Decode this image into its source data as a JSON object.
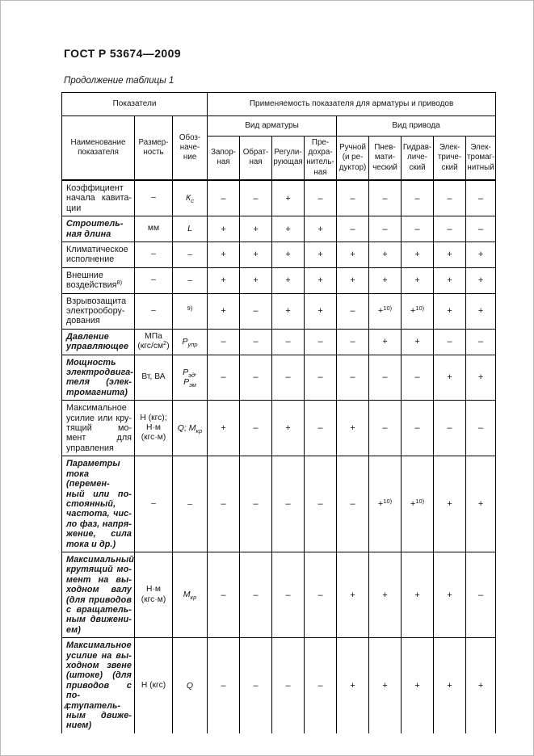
{
  "page": {
    "doc_number": "ГОСТ Р 53674—2009",
    "table_caption": "Продолжение таблицы 1",
    "page_number": "4"
  },
  "table": {
    "header": {
      "indicators": "Показатели",
      "applicability": "Применяемость показателя для арматуры и приводов",
      "name": "Наименование\nпоказателя",
      "dimension": "Размер-\nность",
      "designation": "Обоз-\nначе-\nние",
      "valve_group": "Вид арматуры",
      "drive_group": "Вид привода",
      "valve_cols": [
        "Запор-\nная",
        "Обрат-\nная",
        "Регули-\nрующая",
        "Пре-\nдохра-\nнитель-\nная"
      ],
      "drive_cols": [
        "Ручной\n(и ре-\nдуктор)",
        "Пнев-\nмати-\nческий",
        "Гидрав-\nличе-\nский",
        "Элек-\nтриче-\nский",
        "Элек-\nтромаг-\nнитный"
      ]
    },
    "rows": [
      {
        "name_lines": [
          "Коэффициент",
          "начала кавита-",
          "ции"
        ],
        "bold": false,
        "dim": "–",
        "sym": "К~с~",
        "values": [
          "–",
          "–",
          "+",
          "–",
          "–",
          "–",
          "–",
          "–",
          "–"
        ]
      },
      {
        "name_lines": [
          "Строитель-",
          "ная длина"
        ],
        "bold": true,
        "dim": "мм",
        "sym": "L",
        "values": [
          "+",
          "+",
          "+",
          "+",
          "–",
          "–",
          "–",
          "–",
          "–"
        ]
      },
      {
        "name_lines": [
          "Климатическое",
          "исполнение"
        ],
        "bold": false,
        "dim": "–",
        "sym": "–",
        "values": [
          "+",
          "+",
          "+",
          "+",
          "+",
          "+",
          "+",
          "+",
          "+"
        ]
      },
      {
        "name_lines": [
          "Внешние",
          "воздействия^8)^"
        ],
        "bold": false,
        "dim": "–",
        "sym": "–",
        "values": [
          "+",
          "+",
          "+",
          "+",
          "+",
          "+",
          "+",
          "+",
          "+"
        ]
      },
      {
        "name_lines": [
          "Взрывозащита",
          "электрообору-",
          "дования"
        ],
        "bold": false,
        "dim": "–",
        "sym": "^9)^",
        "values": [
          "+",
          "–",
          "+",
          "+",
          "–",
          "+^10)^",
          "+^10)^",
          "+",
          "+"
        ]
      },
      {
        "name_lines": [
          "Давление",
          "управляющее"
        ],
        "bold": true,
        "dim": "МПа\n(кгс/см^2^)",
        "sym": "Р~упр~",
        "values": [
          "–",
          "–",
          "–",
          "–",
          "–",
          "+",
          "+",
          "–",
          "–"
        ]
      },
      {
        "name_lines": [
          "Мощность",
          "электродвига-",
          "теля (элек-",
          "тромагнита)"
        ],
        "bold": true,
        "dim": "Вт, ВА",
        "sym": "Р~эд~,\nР~эм~",
        "values": [
          "–",
          "–",
          "–",
          "–",
          "–",
          "–",
          "–",
          "+",
          "+"
        ]
      },
      {
        "name_lines": [
          "Максимальное",
          "усилие или кру-",
          "тящий мо-",
          "мент для",
          "управления"
        ],
        "bold": false,
        "dim": "Н (кгс);\nН·м\n(кгс·м)",
        "sym": "Q; М~кр~",
        "values": [
          "+",
          "–",
          "+",
          "–",
          "+",
          "–",
          "–",
          "–",
          "–"
        ]
      },
      {
        "name_lines": [
          "Параметры",
          "тока (перемен-",
          "ный или по-",
          "стоянный,",
          "частота, чис-",
          "ло фаз, напря-",
          "жение, сила",
          "тока и др.)"
        ],
        "bold": true,
        "dim": "–",
        "sym": "–",
        "values": [
          "–",
          "–",
          "–",
          "–",
          "–",
          "+^10)^",
          "+^10)^",
          "+",
          "+"
        ]
      },
      {
        "name_lines": [
          "Максимальный",
          "крутящий мо-",
          "мент на вы-",
          "ходном валу",
          "(для приводов",
          "с вращатель-",
          "ным движени-",
          "ем)"
        ],
        "bold": true,
        "dim": "Н·м\n(кгс·м)",
        "sym": "М~кр~",
        "values": [
          "–",
          "–",
          "–",
          "–",
          "+",
          "+",
          "+",
          "+",
          "–"
        ]
      },
      {
        "name_lines": [
          "Максимальное",
          "усилие на вы-",
          "ходном звене",
          "(штоке) (для",
          "приводов с по-",
          "ступатель-",
          "ным движе-",
          "нием)"
        ],
        "bold": true,
        "dim": "Н (кгс)",
        "sym": "Q",
        "values": [
          "–",
          "–",
          "–",
          "–",
          "+",
          "+",
          "+",
          "+",
          "+"
        ]
      }
    ]
  }
}
